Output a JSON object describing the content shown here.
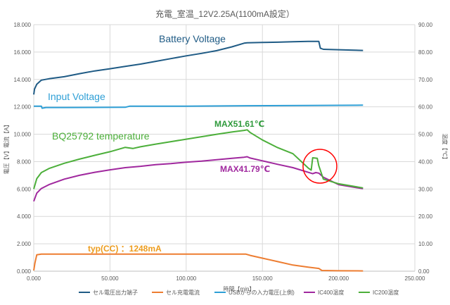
{
  "chart_data": {
    "type": "line",
    "title": "充電_室温_12V2.25A(1100mA設定）",
    "xlabel": "時間【min】",
    "ylabel_left": "電圧【V】電流【A】",
    "ylabel_right": "温度【℃】",
    "xlim": [
      0,
      250
    ],
    "ylim_left": [
      0,
      18
    ],
    "ylim_right": [
      0,
      90
    ],
    "x_ticks": [
      "0.000",
      "50.000",
      "100.000",
      "150.000",
      "200.000",
      "250.000"
    ],
    "y_left_ticks": [
      "0.000",
      "2.000",
      "4.000",
      "6.000",
      "8.000",
      "10.000",
      "12.000",
      "14.000",
      "16.000",
      "18.000"
    ],
    "y_right_ticks": [
      "0.00",
      "10.00",
      "20.00",
      "30.00",
      "40.00",
      "50.00",
      "60.00",
      "70.00",
      "80.00",
      "90.00"
    ],
    "grid": true,
    "legend_position": "bottom",
    "series": [
      {
        "name": "セル電圧出力端子",
        "axis": "left",
        "color": "#1f5b85",
        "points": [
          [
            0,
            12.9
          ],
          [
            0.5,
            13.3
          ],
          [
            2,
            13.65
          ],
          [
            5,
            13.95
          ],
          [
            10,
            14.05
          ],
          [
            20,
            14.2
          ],
          [
            30,
            14.42
          ],
          [
            40,
            14.62
          ],
          [
            50,
            14.78
          ],
          [
            60,
            14.95
          ],
          [
            70,
            15.12
          ],
          [
            80,
            15.32
          ],
          [
            90,
            15.52
          ],
          [
            100,
            15.72
          ],
          [
            110,
            15.9
          ],
          [
            120,
            16.1
          ],
          [
            130,
            16.38
          ],
          [
            138,
            16.65
          ],
          [
            140,
            16.68
          ],
          [
            150,
            16.7
          ],
          [
            160,
            16.72
          ],
          [
            170,
            16.75
          ],
          [
            180,
            16.78
          ],
          [
            187,
            16.78
          ],
          [
            188,
            16.28
          ],
          [
            190,
            16.2
          ],
          [
            200,
            16.17
          ],
          [
            216,
            16.12
          ]
        ]
      },
      {
        "name": "セル充電電流",
        "axis": "left",
        "color": "#ed7d31",
        "points": [
          [
            0,
            0.05
          ],
          [
            0.8,
            0.6
          ],
          [
            2,
            1.2
          ],
          [
            5,
            1.25
          ],
          [
            20,
            1.25
          ],
          [
            60,
            1.25
          ],
          [
            100,
            1.25
          ],
          [
            139,
            1.25
          ],
          [
            142,
            1.15
          ],
          [
            150,
            0.95
          ],
          [
            160,
            0.7
          ],
          [
            170,
            0.45
          ],
          [
            180,
            0.3
          ],
          [
            187,
            0.2
          ],
          [
            189,
            0.05
          ],
          [
            200,
            0.03
          ],
          [
            216,
            0.02
          ]
        ]
      },
      {
        "name": "USBからの入力電圧(上側)",
        "axis": "left",
        "color": "#2e9fd6",
        "points": [
          [
            0,
            12.05
          ],
          [
            5,
            12.05
          ],
          [
            5.5,
            11.9
          ],
          [
            8,
            11.95
          ],
          [
            20,
            11.95
          ],
          [
            60,
            11.97
          ],
          [
            63,
            12.05
          ],
          [
            100,
            12.05
          ],
          [
            140,
            12.08
          ],
          [
            180,
            12.1
          ],
          [
            216,
            12.12
          ]
        ]
      },
      {
        "name": "IC400温度",
        "axis": "right",
        "color": "#a0289e",
        "points": [
          [
            0,
            25.5
          ],
          [
            2,
            28.5
          ],
          [
            5,
            30.2
          ],
          [
            10,
            31.6
          ],
          [
            20,
            33.6
          ],
          [
            30,
            35.0
          ],
          [
            40,
            36.1
          ],
          [
            50,
            37.0
          ],
          [
            60,
            37.8
          ],
          [
            70,
            38.3
          ],
          [
            80,
            38.9
          ],
          [
            90,
            39.3
          ],
          [
            100,
            39.8
          ],
          [
            110,
            40.2
          ],
          [
            120,
            40.7
          ],
          [
            130,
            41.2
          ],
          [
            138,
            41.6
          ],
          [
            140,
            41.79
          ],
          [
            142,
            41.3
          ],
          [
            150,
            40.3
          ],
          [
            160,
            39.0
          ],
          [
            170,
            37.8
          ],
          [
            180,
            36.1
          ],
          [
            183,
            35.6
          ],
          [
            185,
            36.0
          ],
          [
            187,
            35.8
          ],
          [
            190,
            34.3
          ],
          [
            200,
            31.6
          ],
          [
            216,
            30.1
          ]
        ]
      },
      {
        "name": "IC200温度",
        "axis": "right",
        "color": "#4caf3a",
        "points": [
          [
            0,
            30.0
          ],
          [
            2,
            33.8
          ],
          [
            5,
            36.0
          ],
          [
            10,
            37.5
          ],
          [
            20,
            39.4
          ],
          [
            30,
            40.9
          ],
          [
            40,
            42.3
          ],
          [
            50,
            43.6
          ],
          [
            60,
            45.2
          ],
          [
            65,
            44.8
          ],
          [
            70,
            45.4
          ],
          [
            80,
            46.4
          ],
          [
            90,
            47.3
          ],
          [
            100,
            48.2
          ],
          [
            110,
            49.1
          ],
          [
            120,
            50.0
          ],
          [
            130,
            50.8
          ],
          [
            138,
            51.4
          ],
          [
            140,
            51.61
          ],
          [
            142,
            50.6
          ],
          [
            150,
            47.9
          ],
          [
            160,
            45.1
          ],
          [
            170,
            42.9
          ],
          [
            180,
            37.7
          ],
          [
            182,
            36.9
          ],
          [
            183,
            41.4
          ],
          [
            186,
            41.2
          ],
          [
            187,
            38.5
          ],
          [
            190,
            33.6
          ],
          [
            200,
            31.9
          ],
          [
            216,
            30.4
          ]
        ]
      }
    ],
    "annotations": {
      "battery_voltage": "Battery Voltage",
      "input_voltage": "Input Voltage",
      "bq_temp": "BQ25792 temperature",
      "max_ic200": "MAX51.61℃",
      "max_ic400": "MAX41.79℃",
      "typ_cc": "typ(CC) ：1248mA"
    },
    "colors": {
      "text": "#595959",
      "grid": "#d9d9d9",
      "circle": "#ff0000",
      "battery_voltage": "#1f5b85",
      "input_voltage": "#2e9fd6",
      "bq_temp": "#4caf3a",
      "ic200_max": "#2f9a3c",
      "ic400_max": "#a0289e",
      "typ_cc": "#ed9c1d"
    }
  }
}
